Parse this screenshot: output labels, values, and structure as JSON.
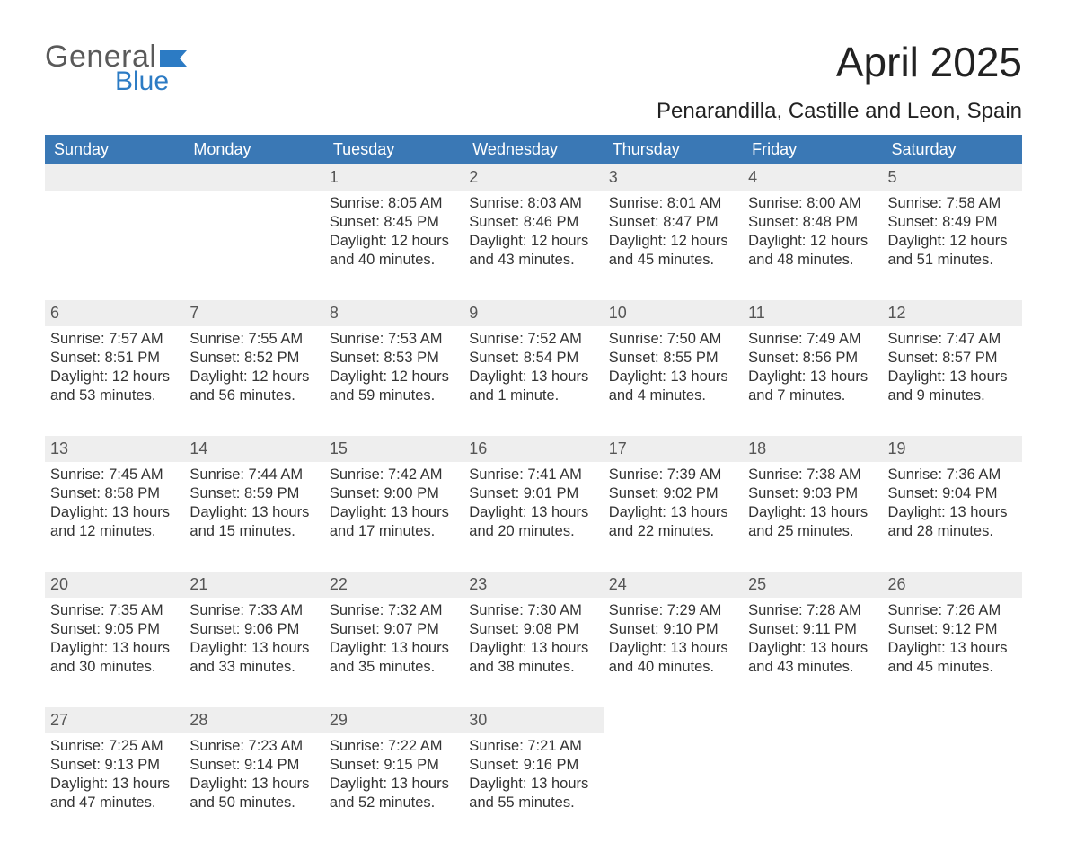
{
  "colors": {
    "header_blue": "#3a78b5",
    "accent_blue": "#2c7bc4",
    "text": "#333333",
    "logo_gray": "#5a5a5a",
    "day_header_bg": "#eeeeee",
    "page_bg": "#ffffff"
  },
  "typography": {
    "month_title_fontsize": 46,
    "location_fontsize": 24,
    "dow_fontsize": 18,
    "daynum_fontsize": 18,
    "body_fontsize": 16.5,
    "font_family": "Arial"
  },
  "layout": {
    "columns": 7,
    "rows": 5,
    "first_weekday_column": 2
  },
  "logo": {
    "word1": "General",
    "word2": "Blue"
  },
  "title": "April 2025",
  "location": "Penarandilla, Castille and Leon, Spain",
  "dow": [
    "Sunday",
    "Monday",
    "Tuesday",
    "Wednesday",
    "Thursday",
    "Friday",
    "Saturday"
  ],
  "weeks": [
    [
      null,
      null,
      {
        "n": "1",
        "sr": "Sunrise: 8:05 AM",
        "ss": "Sunset: 8:45 PM",
        "d1": "Daylight: 12 hours",
        "d2": "and 40 minutes."
      },
      {
        "n": "2",
        "sr": "Sunrise: 8:03 AM",
        "ss": "Sunset: 8:46 PM",
        "d1": "Daylight: 12 hours",
        "d2": "and 43 minutes."
      },
      {
        "n": "3",
        "sr": "Sunrise: 8:01 AM",
        "ss": "Sunset: 8:47 PM",
        "d1": "Daylight: 12 hours",
        "d2": "and 45 minutes."
      },
      {
        "n": "4",
        "sr": "Sunrise: 8:00 AM",
        "ss": "Sunset: 8:48 PM",
        "d1": "Daylight: 12 hours",
        "d2": "and 48 minutes."
      },
      {
        "n": "5",
        "sr": "Sunrise: 7:58 AM",
        "ss": "Sunset: 8:49 PM",
        "d1": "Daylight: 12 hours",
        "d2": "and 51 minutes."
      }
    ],
    [
      {
        "n": "6",
        "sr": "Sunrise: 7:57 AM",
        "ss": "Sunset: 8:51 PM",
        "d1": "Daylight: 12 hours",
        "d2": "and 53 minutes."
      },
      {
        "n": "7",
        "sr": "Sunrise: 7:55 AM",
        "ss": "Sunset: 8:52 PM",
        "d1": "Daylight: 12 hours",
        "d2": "and 56 minutes."
      },
      {
        "n": "8",
        "sr": "Sunrise: 7:53 AM",
        "ss": "Sunset: 8:53 PM",
        "d1": "Daylight: 12 hours",
        "d2": "and 59 minutes."
      },
      {
        "n": "9",
        "sr": "Sunrise: 7:52 AM",
        "ss": "Sunset: 8:54 PM",
        "d1": "Daylight: 13 hours",
        "d2": "and 1 minute."
      },
      {
        "n": "10",
        "sr": "Sunrise: 7:50 AM",
        "ss": "Sunset: 8:55 PM",
        "d1": "Daylight: 13 hours",
        "d2": "and 4 minutes."
      },
      {
        "n": "11",
        "sr": "Sunrise: 7:49 AM",
        "ss": "Sunset: 8:56 PM",
        "d1": "Daylight: 13 hours",
        "d2": "and 7 minutes."
      },
      {
        "n": "12",
        "sr": "Sunrise: 7:47 AM",
        "ss": "Sunset: 8:57 PM",
        "d1": "Daylight: 13 hours",
        "d2": "and 9 minutes."
      }
    ],
    [
      {
        "n": "13",
        "sr": "Sunrise: 7:45 AM",
        "ss": "Sunset: 8:58 PM",
        "d1": "Daylight: 13 hours",
        "d2": "and 12 minutes."
      },
      {
        "n": "14",
        "sr": "Sunrise: 7:44 AM",
        "ss": "Sunset: 8:59 PM",
        "d1": "Daylight: 13 hours",
        "d2": "and 15 minutes."
      },
      {
        "n": "15",
        "sr": "Sunrise: 7:42 AM",
        "ss": "Sunset: 9:00 PM",
        "d1": "Daylight: 13 hours",
        "d2": "and 17 minutes."
      },
      {
        "n": "16",
        "sr": "Sunrise: 7:41 AM",
        "ss": "Sunset: 9:01 PM",
        "d1": "Daylight: 13 hours",
        "d2": "and 20 minutes."
      },
      {
        "n": "17",
        "sr": "Sunrise: 7:39 AM",
        "ss": "Sunset: 9:02 PM",
        "d1": "Daylight: 13 hours",
        "d2": "and 22 minutes."
      },
      {
        "n": "18",
        "sr": "Sunrise: 7:38 AM",
        "ss": "Sunset: 9:03 PM",
        "d1": "Daylight: 13 hours",
        "d2": "and 25 minutes."
      },
      {
        "n": "19",
        "sr": "Sunrise: 7:36 AM",
        "ss": "Sunset: 9:04 PM",
        "d1": "Daylight: 13 hours",
        "d2": "and 28 minutes."
      }
    ],
    [
      {
        "n": "20",
        "sr": "Sunrise: 7:35 AM",
        "ss": "Sunset: 9:05 PM",
        "d1": "Daylight: 13 hours",
        "d2": "and 30 minutes."
      },
      {
        "n": "21",
        "sr": "Sunrise: 7:33 AM",
        "ss": "Sunset: 9:06 PM",
        "d1": "Daylight: 13 hours",
        "d2": "and 33 minutes."
      },
      {
        "n": "22",
        "sr": "Sunrise: 7:32 AM",
        "ss": "Sunset: 9:07 PM",
        "d1": "Daylight: 13 hours",
        "d2": "and 35 minutes."
      },
      {
        "n": "23",
        "sr": "Sunrise: 7:30 AM",
        "ss": "Sunset: 9:08 PM",
        "d1": "Daylight: 13 hours",
        "d2": "and 38 minutes."
      },
      {
        "n": "24",
        "sr": "Sunrise: 7:29 AM",
        "ss": "Sunset: 9:10 PM",
        "d1": "Daylight: 13 hours",
        "d2": "and 40 minutes."
      },
      {
        "n": "25",
        "sr": "Sunrise: 7:28 AM",
        "ss": "Sunset: 9:11 PM",
        "d1": "Daylight: 13 hours",
        "d2": "and 43 minutes."
      },
      {
        "n": "26",
        "sr": "Sunrise: 7:26 AM",
        "ss": "Sunset: 9:12 PM",
        "d1": "Daylight: 13 hours",
        "d2": "and 45 minutes."
      }
    ],
    [
      {
        "n": "27",
        "sr": "Sunrise: 7:25 AM",
        "ss": "Sunset: 9:13 PM",
        "d1": "Daylight: 13 hours",
        "d2": "and 47 minutes."
      },
      {
        "n": "28",
        "sr": "Sunrise: 7:23 AM",
        "ss": "Sunset: 9:14 PM",
        "d1": "Daylight: 13 hours",
        "d2": "and 50 minutes."
      },
      {
        "n": "29",
        "sr": "Sunrise: 7:22 AM",
        "ss": "Sunset: 9:15 PM",
        "d1": "Daylight: 13 hours",
        "d2": "and 52 minutes."
      },
      {
        "n": "30",
        "sr": "Sunrise: 7:21 AM",
        "ss": "Sunset: 9:16 PM",
        "d1": "Daylight: 13 hours",
        "d2": "and 55 minutes."
      },
      null,
      null,
      null
    ]
  ]
}
